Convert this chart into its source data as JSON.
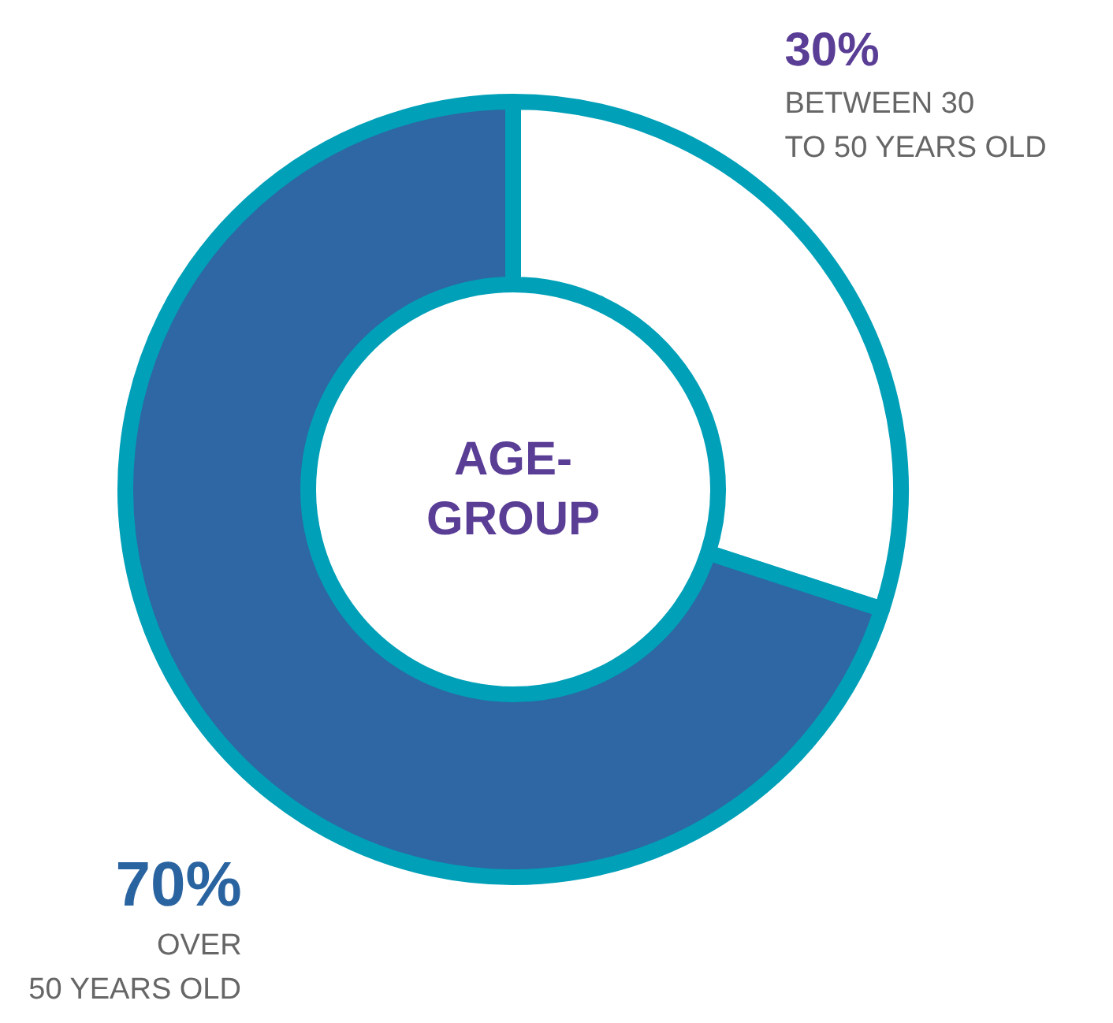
{
  "chart_data": {
    "type": "donut",
    "title": "AGE-\nGROUP",
    "categories": [
      "BETWEEN 30\nTO 50 YEARS OLD",
      "OVER\n50 YEARS OLD"
    ],
    "values": [
      30,
      70
    ],
    "colors": [
      "#ffffff",
      "#2e67a3"
    ],
    "value_labels": [
      "30%",
      "70%"
    ]
  }
}
